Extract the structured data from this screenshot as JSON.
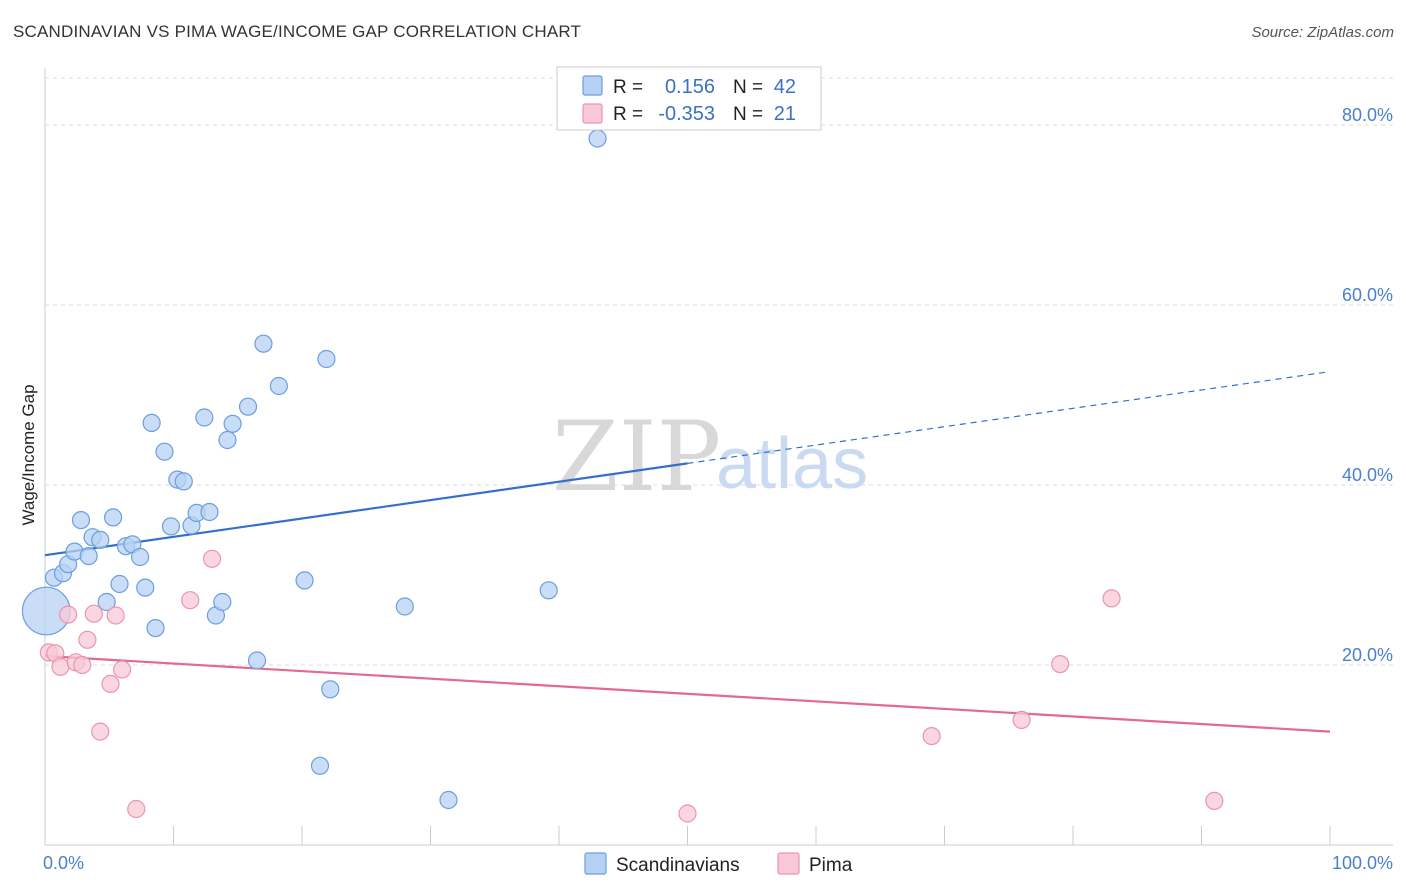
{
  "title": "SCANDINAVIAN VS PIMA WAGE/INCOME GAP CORRELATION CHART",
  "source": "Source: ZipAtlas.com",
  "watermark": {
    "zip": "ZIP",
    "atlas": "atlas"
  },
  "colors": {
    "scandinavian_fill": "#b7d1f3",
    "scandinavian_stroke": "#6b9ee0",
    "scandinavian_line": "#3370cc",
    "pima_fill": "#f8c8d6",
    "pima_stroke": "#e896b0",
    "pima_line": "#e26896",
    "grid": "#dddddd",
    "axis_label": "#4a7fcf"
  },
  "stats": [
    {
      "key": "scandinavian",
      "r_label": "R =",
      "r_value": "0.156",
      "n_label": "N =",
      "n_value": "42"
    },
    {
      "key": "pima",
      "r_label": "R =",
      "r_value": "-0.353",
      "n_label": "N =",
      "n_value": "21"
    }
  ],
  "chart_data": {
    "type": "scatter",
    "title": "SCANDINAVIAN VS PIMA WAGE/INCOME GAP CORRELATION CHART",
    "xlabel": "",
    "ylabel": "Wage/Income Gap",
    "xlim": [
      0,
      100
    ],
    "ylim": [
      0,
      85
    ],
    "x_tick_labels": [
      {
        "value": 0,
        "label": "0.0%"
      },
      {
        "value": 100,
        "label": "100.0%"
      }
    ],
    "y_tick_labels": [
      {
        "value": 20,
        "label": "20.0%"
      },
      {
        "value": 40,
        "label": "40.0%"
      },
      {
        "value": 60,
        "label": "60.0%"
      },
      {
        "value": 80,
        "label": "80.0%"
      }
    ],
    "legend": [
      "Scandinavians",
      "Pima"
    ],
    "series": [
      {
        "name": "Scandinavians",
        "points": [
          [
            0.1,
            26.0,
            2.8
          ],
          [
            0.7,
            29.7,
            1
          ],
          [
            1.4,
            30.2,
            1
          ],
          [
            1.8,
            31.2,
            1
          ],
          [
            2.3,
            32.6,
            1
          ],
          [
            2.8,
            36.1,
            1
          ],
          [
            3.4,
            32.1,
            1
          ],
          [
            3.7,
            34.2,
            1
          ],
          [
            4.3,
            33.9,
            1
          ],
          [
            4.8,
            27.0,
            1
          ],
          [
            5.3,
            36.4,
            1
          ],
          [
            5.8,
            29.0,
            1
          ],
          [
            6.3,
            33.2,
            1
          ],
          [
            6.8,
            33.4,
            1
          ],
          [
            7.4,
            32.0,
            1
          ],
          [
            7.8,
            28.6,
            1
          ],
          [
            8.3,
            46.9,
            1
          ],
          [
            8.6,
            24.1,
            1
          ],
          [
            9.3,
            43.7,
            1
          ],
          [
            9.8,
            35.4,
            1
          ],
          [
            10.3,
            40.6,
            1
          ],
          [
            10.8,
            40.4,
            1
          ],
          [
            11.4,
            35.5,
            1
          ],
          [
            11.8,
            36.9,
            1
          ],
          [
            12.4,
            47.5,
            1
          ],
          [
            12.8,
            37.0,
            1
          ],
          [
            13.3,
            25.5,
            1
          ],
          [
            13.8,
            27.0,
            1
          ],
          [
            14.2,
            45.0,
            1
          ],
          [
            14.6,
            46.8,
            1
          ],
          [
            15.8,
            48.7,
            1
          ],
          [
            16.5,
            20.5,
            1
          ],
          [
            17.0,
            55.7,
            1
          ],
          [
            18.2,
            51.0,
            1
          ],
          [
            20.2,
            29.4,
            1
          ],
          [
            21.4,
            8.8,
            1
          ],
          [
            21.9,
            54.0,
            1
          ],
          [
            22.2,
            17.3,
            1
          ],
          [
            28.0,
            26.5,
            1
          ],
          [
            31.4,
            5.0,
            1
          ],
          [
            39.2,
            28.3,
            1
          ],
          [
            43.0,
            78.5,
            1
          ]
        ]
      },
      {
        "name": "Pima",
        "points": [
          [
            0.3,
            21.4,
            1
          ],
          [
            0.8,
            21.3,
            1
          ],
          [
            1.2,
            19.8,
            1
          ],
          [
            1.8,
            25.6,
            1
          ],
          [
            2.4,
            20.3,
            1
          ],
          [
            2.9,
            20.0,
            1
          ],
          [
            3.3,
            22.8,
            1
          ],
          [
            3.8,
            25.7,
            1
          ],
          [
            4.3,
            12.6,
            1
          ],
          [
            5.1,
            17.9,
            1
          ],
          [
            5.5,
            25.5,
            1
          ],
          [
            6.0,
            19.5,
            1
          ],
          [
            7.1,
            4.0,
            1
          ],
          [
            11.3,
            27.2,
            1
          ],
          [
            13.0,
            31.8,
            1
          ],
          [
            50.0,
            3.5,
            1
          ],
          [
            69.0,
            12.1,
            1
          ],
          [
            76.0,
            13.9,
            1
          ],
          [
            79.0,
            20.1,
            1
          ],
          [
            83.0,
            27.4,
            1
          ],
          [
            91.0,
            4.9,
            1
          ]
        ]
      }
    ],
    "trend_lines": [
      {
        "name": "Scandinavians",
        "x0": 0,
        "y0": 32.2,
        "x_solid_end": 50,
        "y_solid_end": 42.4,
        "x1": 100,
        "y1": 52.6
      },
      {
        "name": "Pima",
        "x0": 0,
        "y0": 21.0,
        "x1": 100,
        "y1": 12.6
      }
    ]
  }
}
